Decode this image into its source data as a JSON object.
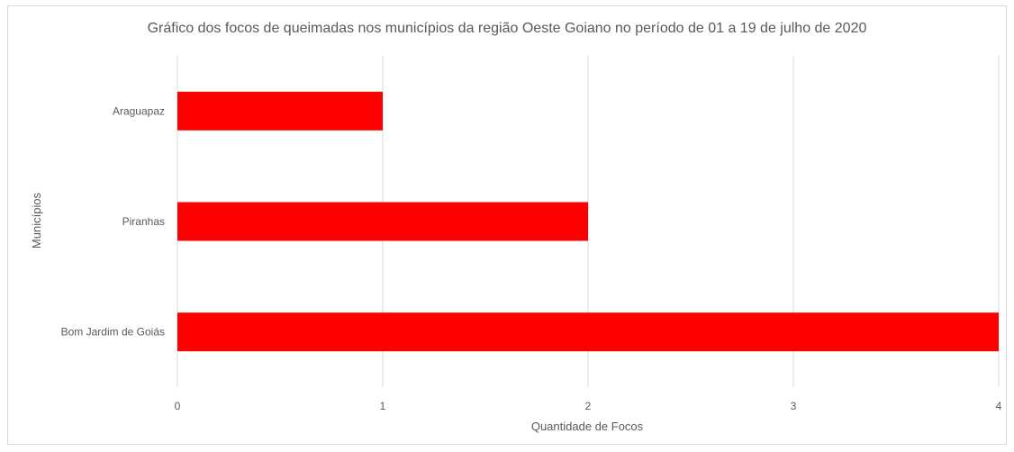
{
  "chart_data": {
    "type": "bar",
    "orientation": "horizontal",
    "title": "Gráfico dos focos de queimadas nos municípios da região Oeste Goiano no período de 01 a 19 de julho de 2020",
    "xlabel": "Quantidade de Focos",
    "ylabel": "Municípios",
    "categories": [
      "Bom Jardim de Goiás",
      "Piranhas",
      "Araguapaz"
    ],
    "values": [
      4,
      2,
      1
    ],
    "xlim": [
      0,
      4
    ],
    "x_ticks": [
      "0",
      "1",
      "2",
      "3",
      "4"
    ],
    "grid": true,
    "legend": "none",
    "bar_color": "#ff0000"
  }
}
